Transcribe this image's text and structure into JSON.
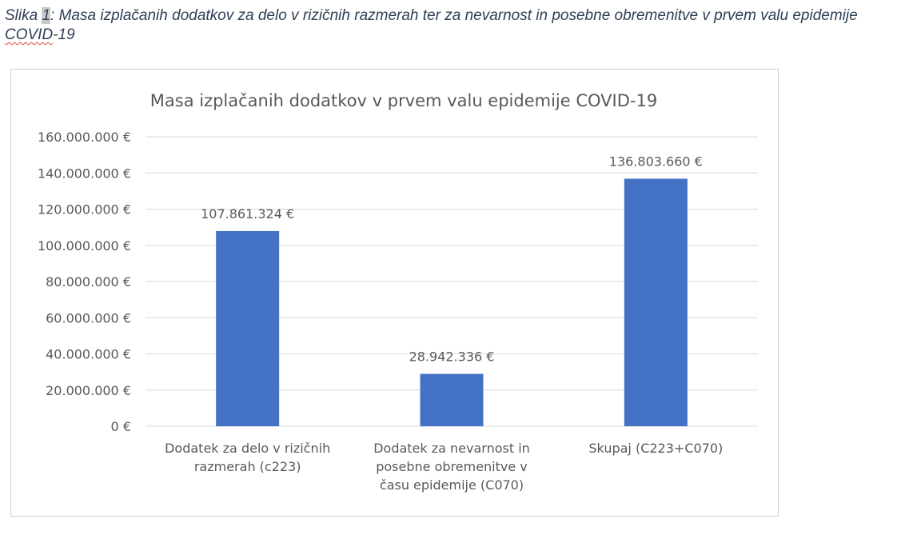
{
  "caption": {
    "prefix": "Slika ",
    "number": "1",
    "text_before_squiggle": ": Masa izplačanih dodatkov za delo v rizičnih razmerah ter za nevarnost in posebne obremenitve v prvem valu epidemije ",
    "squiggle_word": "COVID",
    "suffix": "-19"
  },
  "chart_data": {
    "type": "bar",
    "title": "Masa izplačanih dodatkov v prvem valu epidemije COVID-19",
    "categories": [
      [
        "Dodatek za delo v rizičnih",
        "razmerah (c223)"
      ],
      [
        "Dodatek za nevarnost in",
        "posebne obremenitve v",
        "času epidemije (C070)"
      ],
      [
        "Skupaj (C223+C070)"
      ]
    ],
    "values": [
      107861324,
      28942336,
      136803660
    ],
    "data_labels": [
      "107.861.324 €",
      "28.942.336 €",
      "136.803.660 €"
    ],
    "ylim": [
      0,
      160000000
    ],
    "yticks": [
      0,
      20000000,
      40000000,
      60000000,
      80000000,
      100000000,
      120000000,
      140000000,
      160000000
    ],
    "ytick_labels": [
      "0 €",
      "20.000.000 €",
      "40.000.000 €",
      "60.000.000 €",
      "80.000.000 €",
      "100.000.000 €",
      "120.000.000 €",
      "140.000.000 €",
      "160.000.000 €"
    ],
    "grid": true,
    "legend": "none",
    "colors": {
      "bar": "#4472c4",
      "grid": "#d9d9d9",
      "text": "#595959"
    }
  }
}
